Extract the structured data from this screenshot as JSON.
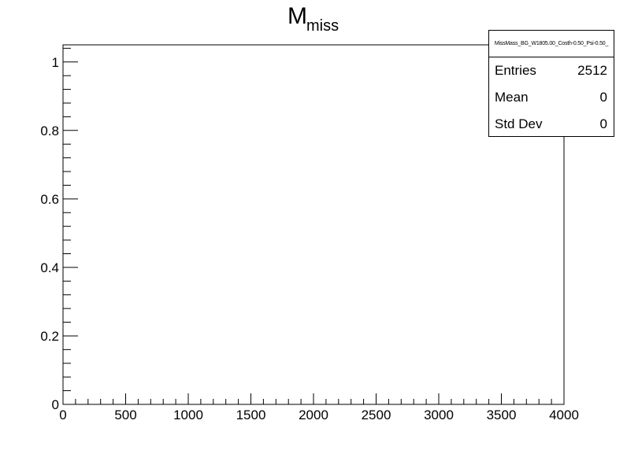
{
  "chart_data": {
    "type": "histogram",
    "title": "M",
    "title_subscript": "miss",
    "xlabel": "",
    "ylabel": "",
    "xlim": [
      0,
      4000
    ],
    "ylim": [
      0,
      1.05
    ],
    "x_ticks": [
      0,
      500,
      1000,
      1500,
      2000,
      2500,
      3000,
      3500,
      4000
    ],
    "y_ticks": [
      0,
      0.2,
      0.4,
      0.6,
      0.8,
      1
    ],
    "x_tick_labels": [
      "0",
      "500",
      "1000",
      "1500",
      "2000",
      "2500",
      "3000",
      "3500",
      "4000"
    ],
    "y_tick_labels": [
      "0",
      "0.2",
      "0.4",
      "0.6",
      "0.8",
      "1"
    ],
    "grid": false,
    "series": [],
    "stats_box": {
      "name": "MissMass_BG_W1805.00_Costh-0.50_Psi-0.50_",
      "rows": [
        {
          "label": "Entries",
          "value": "2512"
        },
        {
          "label": "Mean",
          "value": "0"
        },
        {
          "label": "Std Dev",
          "value": "0"
        }
      ]
    }
  }
}
